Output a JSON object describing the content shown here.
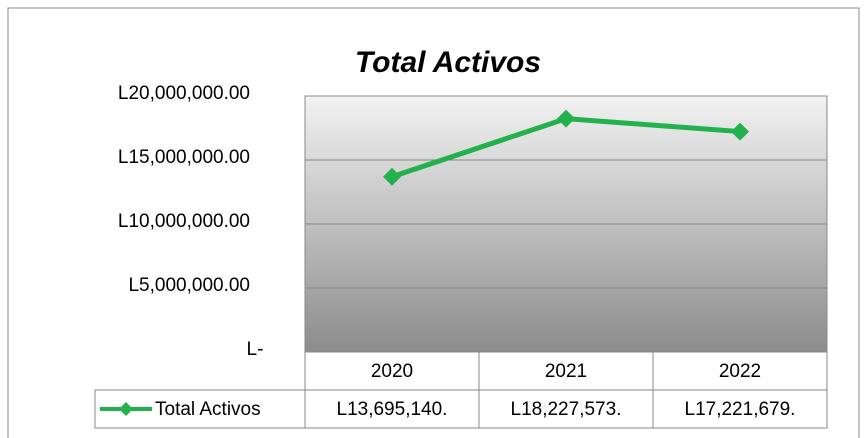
{
  "chart_data": {
    "type": "line",
    "title": "Total Activos",
    "categories": [
      "2020",
      "2021",
      "2022"
    ],
    "series": [
      {
        "name": "Total Activos",
        "color": "#22b14c",
        "values": [
          13695140,
          18227573,
          17221679
        ],
        "value_labels": [
          "L13,695,140.",
          "L18,227,573.",
          "L17,221,679."
        ]
      }
    ],
    "ylim": [
      0,
      20000000
    ],
    "yticks": [
      {
        "value": 0,
        "label": "L-"
      },
      {
        "value": 5000000,
        "label": "L5,000,000.00"
      },
      {
        "value": 10000000,
        "label": "L10,000,000.00"
      },
      {
        "value": 15000000,
        "label": "L15,000,000.00"
      },
      {
        "value": 20000000,
        "label": "L20,000,000.00"
      }
    ],
    "grid": true,
    "legend": "bottom"
  }
}
